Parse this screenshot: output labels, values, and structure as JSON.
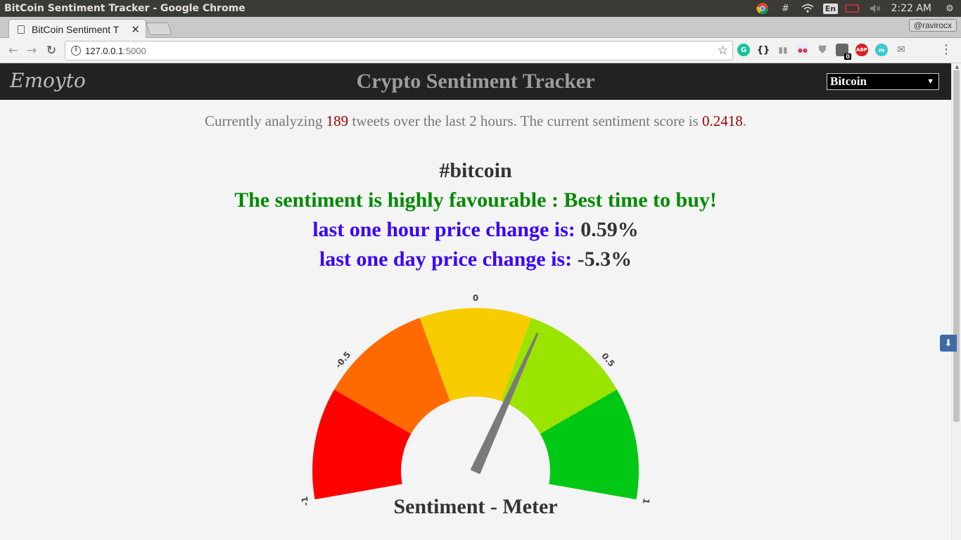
{
  "os": {
    "window_title": "BitCoin Sentiment Tracker - Google Chrome",
    "language": "En",
    "clock": "2:22 AM"
  },
  "browser": {
    "tab_title": "BitCoin Sentiment T",
    "profile": "@ravirocx",
    "url_host": "127.0.0.1",
    "url_port": ":5000",
    "extension_badge": "0"
  },
  "navbar": {
    "logo": "Emoyto",
    "title": "Crypto Sentiment Tracker",
    "selected_coin": "Bitcoin"
  },
  "summary": {
    "prefix": "Currently analyzing ",
    "tweet_count": "189",
    "middle": " tweets over the last 2 hours. The current sentiment score is ",
    "score": "0.2418",
    "suffix": "."
  },
  "main": {
    "hashtag": "#bitcoin",
    "verdict": "The sentiment is highly favourable : Best time to buy!",
    "hour_label": "last one hour price change is:",
    "hour_value": "0.59%",
    "day_label": "last one day price change is:",
    "day_value": "-5.3%"
  },
  "gauge": {
    "title": "Sentiment - Meter",
    "min": -1,
    "max": 1,
    "value": 0.2418,
    "tick_labels": [
      "-1",
      "-0.5",
      "0",
      "0.5",
      "1"
    ],
    "tick_values": [
      -1,
      -0.5,
      0,
      0.5,
      1
    ],
    "segments": [
      {
        "from": -1,
        "to": -0.6,
        "color": "#ff0000"
      },
      {
        "from": -0.6,
        "to": -0.2,
        "color": "#ff6a00"
      },
      {
        "from": -0.2,
        "to": 0.2,
        "color": "#f7cc00"
      },
      {
        "from": 0.2,
        "to": 0.6,
        "color": "#9be400"
      },
      {
        "from": 0.6,
        "to": 1,
        "color": "#00c814"
      }
    ],
    "needle_color": "#7a7a7a"
  }
}
